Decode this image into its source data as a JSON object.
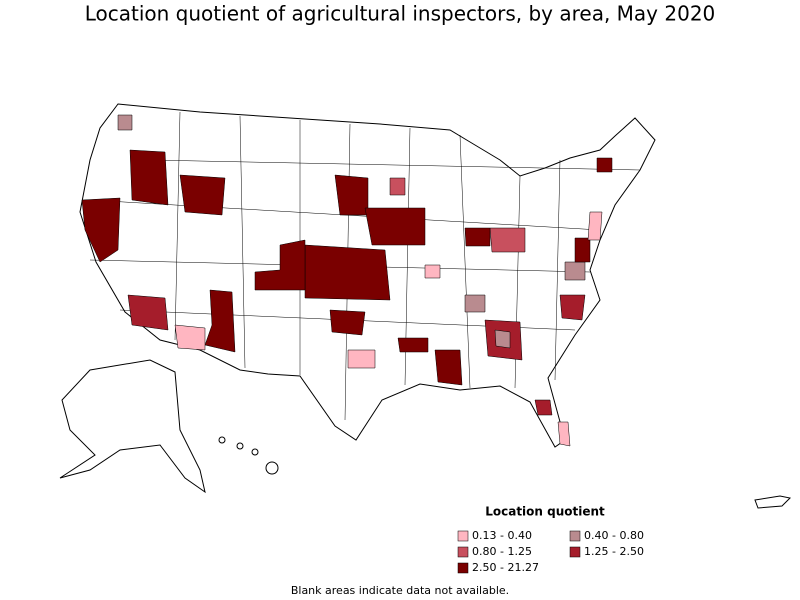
{
  "title": "Location quotient of agricultural inspectors, by area, May 2020",
  "legend": {
    "title": "Location quotient",
    "items": [
      {
        "label": "0.13 - 0.40",
        "color": "#ffb6c1"
      },
      {
        "label": "0.40 - 0.80",
        "color": "#b98b8f"
      },
      {
        "label": "0.80 - 1.25",
        "color": "#c8505e"
      },
      {
        "label": "1.25 - 2.50",
        "color": "#a51d2b"
      },
      {
        "label": "2.50 - 21.27",
        "color": "#7a0000"
      }
    ]
  },
  "footnote": "Blank areas indicate data not available."
}
